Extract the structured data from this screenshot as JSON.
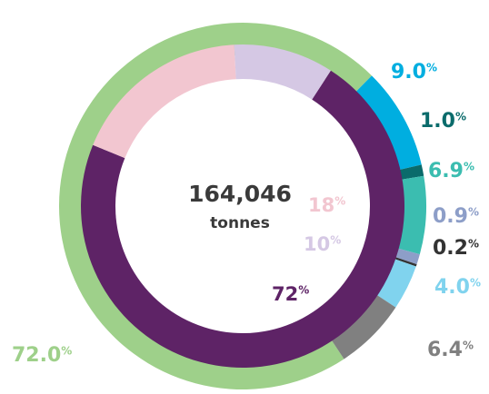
{
  "chart_data": {
    "type": "pie",
    "center_value": "164,046",
    "center_unit": "tonnes",
    "outer_ring": [
      {
        "value": 72.0,
        "label": "72.0",
        "color": "#9ed08a",
        "label_color": "#9ed08a"
      },
      {
        "value": 9.0,
        "label": "9.0",
        "color": "#00aee0",
        "label_color": "#00aee0"
      },
      {
        "value": 1.0,
        "label": "1.0",
        "color": "#0a6b6b",
        "label_color": "#0a6b6b"
      },
      {
        "value": 6.9,
        "label": "6.9",
        "color": "#3bbdb0",
        "label_color": "#3bbdb0"
      },
      {
        "value": 0.9,
        "label": "0.9",
        "color": "#8d9ec8",
        "label_color": "#8d9ec8"
      },
      {
        "value": 0.2,
        "label": "0.2",
        "color": "#333333",
        "label_color": "#333333"
      },
      {
        "value": 4.0,
        "label": "4.0",
        "color": "#80d3ee",
        "label_color": "#80d3ee"
      },
      {
        "value": 6.4,
        "label": "6.4",
        "color": "#808080",
        "label_color": "#808080"
      }
    ],
    "inner_ring": [
      {
        "value": 72,
        "label": "72",
        "color": "#5e2366",
        "label_color": "#5e2366"
      },
      {
        "value": 18,
        "label": "18",
        "color": "#f2c6d0",
        "label_color": "#f2c6d0"
      },
      {
        "value": 10,
        "label": "10",
        "color": "#d5c8e4",
        "label_color": "#d5c8e4"
      }
    ],
    "percent_sign": "%"
  }
}
